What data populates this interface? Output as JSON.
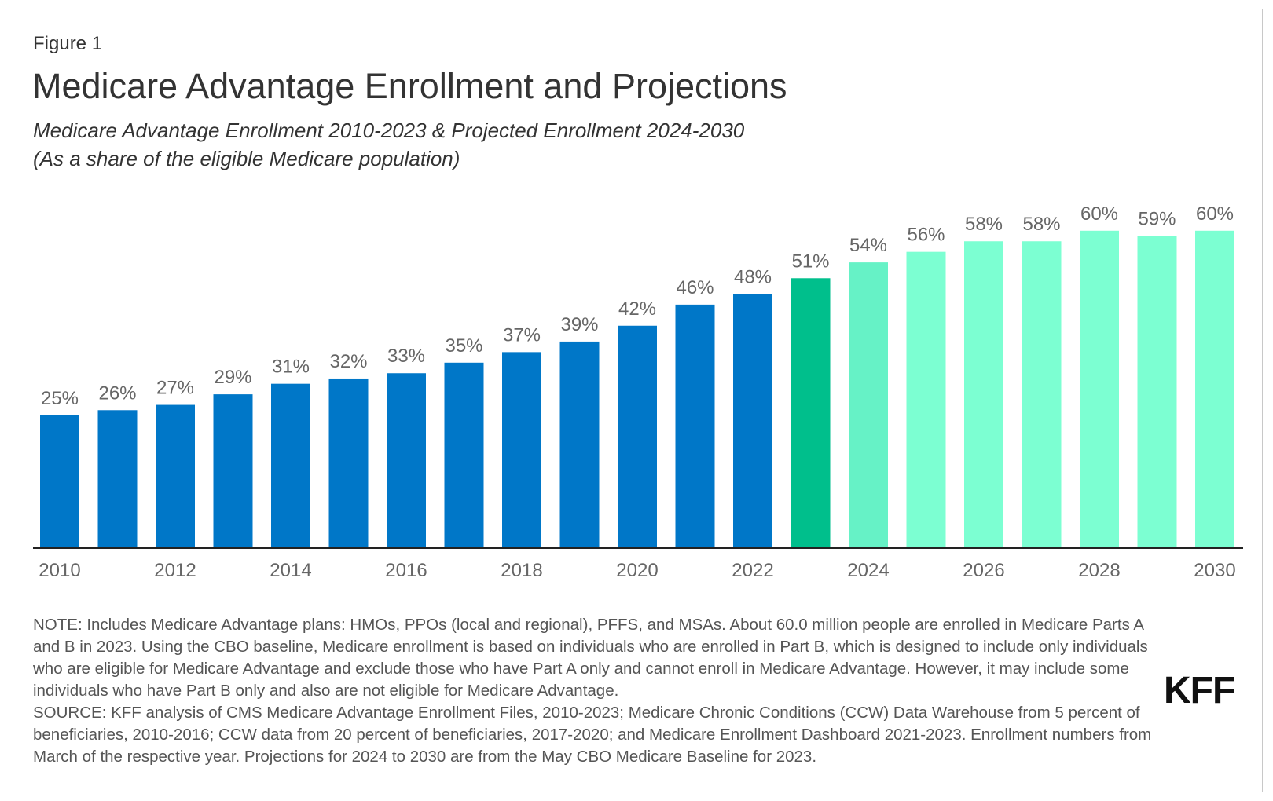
{
  "figure_label": "Figure 1",
  "title": "Medicare Advantage Enrollment and Projections",
  "subtitle_line1": "Medicare Advantage Enrollment 2010-2023 & Projected Enrollment 2024-2030",
  "subtitle_line2": "(As a share of the eligible Medicare population)",
  "note": "NOTE: Includes Medicare Advantage plans: HMOs, PPOs (local and regional), PFFS, and MSAs. About 60.0 million people are enrolled in Medicare Parts A and B in 2023. Using the CBO baseline, Medicare enrollment is based on individuals who are enrolled in Part B, which is designed to include only individuals who are eligible for Medicare Advantage and exclude those who have Part A only and cannot enroll in Medicare Advantage. However, it may include some individuals who have Part B only and also are not eligible for Medicare Advantage.",
  "source": "SOURCE: KFF analysis of CMS Medicare Advantage Enrollment Files, 2010-2023; Medicare Chronic Conditions (CCW) Data Warehouse from 5 percent of beneficiaries, 2010-2016; CCW data from 20 percent of beneficiaries, 2017-2020; and Medicare Enrollment Dashboard 2021-2023. Enrollment numbers from March of the respective year. Projections for 2024 to 2030 are from the May CBO Medicare Baseline for 2023.",
  "logo": "KFF",
  "colors": {
    "historical": "#0077c8",
    "current": "#00bf8c",
    "projected_2024": "#66f2c6",
    "projected": "#7cffd2",
    "axis": "#222222",
    "label": "#666666"
  },
  "chart_data": {
    "type": "bar",
    "categories": [
      "2010",
      "2011",
      "2012",
      "2013",
      "2014",
      "2015",
      "2016",
      "2017",
      "2018",
      "2019",
      "2020",
      "2021",
      "2022",
      "2023",
      "2024",
      "2025",
      "2026",
      "2027",
      "2028",
      "2029",
      "2030"
    ],
    "values": [
      25,
      26,
      27,
      29,
      31,
      32,
      33,
      35,
      37,
      39,
      42,
      46,
      48,
      51,
      54,
      56,
      58,
      58,
      60,
      59,
      60
    ],
    "data_labels": [
      "25%",
      "26%",
      "27%",
      "29%",
      "31%",
      "32%",
      "33%",
      "35%",
      "37%",
      "39%",
      "42%",
      "46%",
      "48%",
      "51%",
      "54%",
      "56%",
      "58%",
      "58%",
      "60%",
      "59%",
      "60%"
    ],
    "bar_groups": [
      "historical",
      "historical",
      "historical",
      "historical",
      "historical",
      "historical",
      "historical",
      "historical",
      "historical",
      "historical",
      "historical",
      "historical",
      "historical",
      "current",
      "projected_2024",
      "projected",
      "projected",
      "projected",
      "projected",
      "projected",
      "projected"
    ],
    "x_tick_labels": [
      "2010",
      "2012",
      "2014",
      "2016",
      "2018",
      "2020",
      "2022",
      "2024",
      "2026",
      "2028",
      "2030"
    ],
    "ylim": [
      0,
      100
    ],
    "grid": false,
    "legend": "none"
  }
}
